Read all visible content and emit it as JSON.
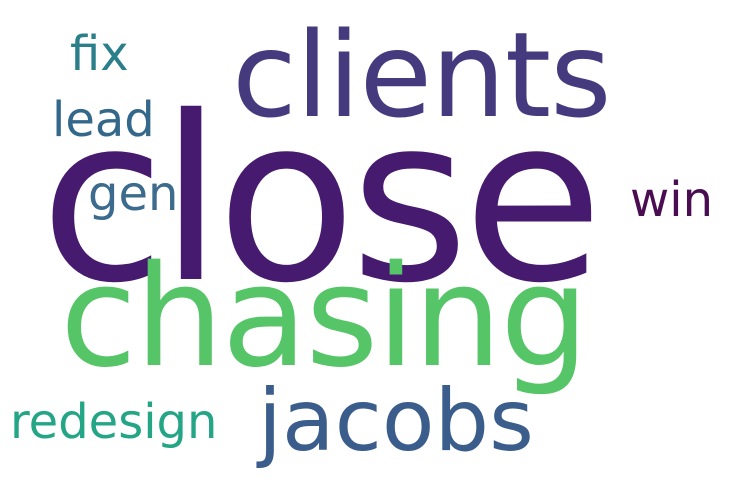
{
  "colors": {
    "background": "#ffffff"
  },
  "words": {
    "close": {
      "text": "close",
      "color": "#461a6e"
    },
    "clients": {
      "text": "clients",
      "color": "#463a7f"
    },
    "chasing": {
      "text": "chasing",
      "color": "#55c568"
    },
    "jacobs": {
      "text": "jacobs",
      "color": "#3a5d8c"
    },
    "redesign": {
      "text": "redesign",
      "color": "#24a586"
    },
    "win": {
      "text": "win",
      "color": "#4a0d52"
    },
    "gen": {
      "text": "gen",
      "color": "#3c6b8d"
    },
    "lead": {
      "text": "lead",
      "color": "#33688b"
    },
    "fix": {
      "text": "fix",
      "color": "#2b7f8a"
    }
  }
}
